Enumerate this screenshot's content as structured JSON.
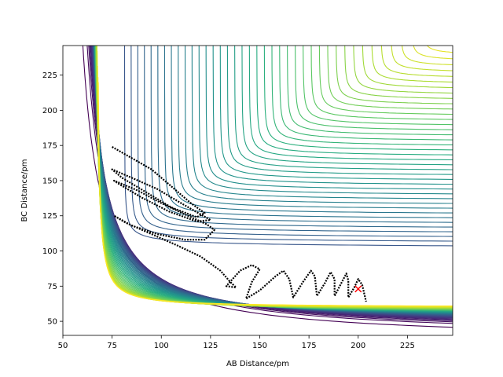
{
  "chart_data": {
    "type": "contour",
    "title": "",
    "xlabel": "AB Distance/pm",
    "ylabel": "BC Distance/pm",
    "xlim": [
      50,
      248
    ],
    "ylim": [
      40,
      246
    ],
    "x_ticks": [
      50,
      75,
      100,
      125,
      150,
      175,
      200,
      225
    ],
    "y_ticks": [
      50,
      75,
      100,
      125,
      150,
      175,
      200,
      225
    ],
    "grid": false,
    "colormap": [
      "#440154",
      "#472d7b",
      "#3b528b",
      "#2c728e",
      "#21918c",
      "#28ae80",
      "#5ec962",
      "#addc30",
      "#fde725"
    ],
    "contour_levels": 46,
    "surface": "LEPS potential energy surface, valley along the two axes",
    "trajectory": {
      "color": "#000000",
      "points": [
        [
          75,
          174
        ],
        [
          85,
          166
        ],
        [
          95,
          158
        ],
        [
          105,
          146
        ],
        [
          115,
          134
        ],
        [
          122,
          127
        ],
        [
          118,
          124
        ],
        [
          105,
          131
        ],
        [
          92,
          142
        ],
        [
          80,
          152
        ],
        [
          75,
          158
        ],
        [
          85,
          152
        ],
        [
          98,
          144
        ],
        [
          110,
          134
        ],
        [
          120,
          126
        ],
        [
          125,
          122
        ],
        [
          118,
          121
        ],
        [
          104,
          128
        ],
        [
          90,
          138
        ],
        [
          78,
          148
        ],
        [
          76,
          150
        ],
        [
          88,
          143
        ],
        [
          100,
          134
        ],
        [
          112,
          126
        ],
        [
          123,
          119
        ],
        [
          127,
          115
        ],
        [
          122,
          108
        ],
        [
          112,
          108
        ],
        [
          98,
          112
        ],
        [
          85,
          118
        ],
        [
          76,
          125
        ],
        [
          82,
          120
        ],
        [
          95,
          112
        ],
        [
          108,
          104
        ],
        [
          120,
          96
        ],
        [
          130,
          86
        ],
        [
          135,
          78
        ],
        [
          138,
          74
        ],
        [
          133,
          75
        ],
        [
          140,
          86
        ],
        [
          146,
          90
        ],
        [
          150,
          87
        ],
        [
          146,
          78
        ],
        [
          143,
          66
        ],
        [
          150,
          72
        ],
        [
          158,
          82
        ],
        [
          162,
          86
        ],
        [
          165,
          80
        ],
        [
          167,
          67
        ],
        [
          172,
          78
        ],
        [
          176,
          86
        ],
        [
          178,
          82
        ],
        [
          179,
          68
        ],
        [
          183,
          77
        ],
        [
          186,
          85
        ],
        [
          188,
          80
        ],
        [
          188,
          68
        ],
        [
          191,
          76
        ],
        [
          194,
          84
        ],
        [
          195,
          79
        ],
        [
          195,
          67
        ],
        [
          198,
          74
        ],
        [
          200,
          80
        ],
        [
          202,
          76
        ],
        [
          204,
          64
        ]
      ]
    },
    "marker": {
      "x": 200,
      "y": 73,
      "symbol": "x",
      "color": "#ff0000"
    }
  }
}
